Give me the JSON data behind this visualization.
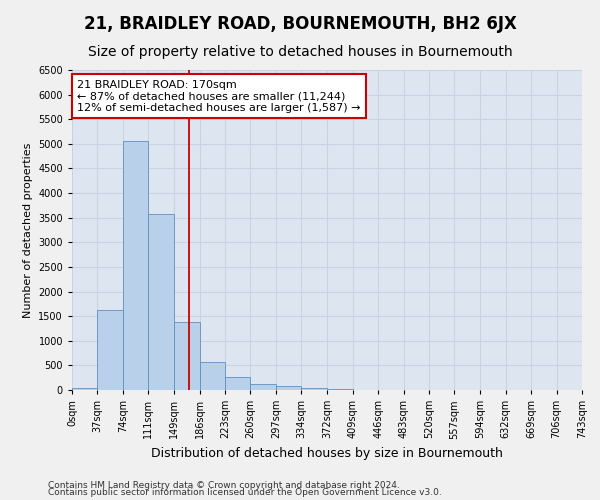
{
  "title": "21, BRAIDLEY ROAD, BOURNEMOUTH, BH2 6JX",
  "subtitle": "Size of property relative to detached houses in Bournemouth",
  "xlabel": "Distribution of detached houses by size in Bournemouth",
  "ylabel": "Number of detached properties",
  "footer_line1": "Contains HM Land Registry data © Crown copyright and database right 2024.",
  "footer_line2": "Contains public sector information licensed under the Open Government Licence v3.0.",
  "bar_left_edges": [
    0,
    37,
    74,
    111,
    149,
    186,
    223,
    260,
    297,
    334,
    372,
    409,
    446,
    483,
    520,
    557,
    594,
    632,
    669,
    706
  ],
  "bar_widths": [
    37,
    37,
    37,
    38,
    37,
    37,
    37,
    37,
    37,
    38,
    37,
    37,
    37,
    37,
    37,
    37,
    38,
    37,
    37,
    37
  ],
  "bar_heights": [
    50,
    1620,
    5050,
    3570,
    1380,
    570,
    260,
    120,
    80,
    50,
    20,
    10,
    5,
    3,
    2,
    1,
    0,
    0,
    0,
    0
  ],
  "bar_color": "#b8d0ea",
  "bar_edge_color": "#6090c0",
  "grid_color": "#c8d4e4",
  "bg_color": "#dde5f0",
  "fig_bg_color": "#f0f0f0",
  "vline_x": 170,
  "vline_color": "#cc0000",
  "annotation_line1": "21 BRAIDLEY ROAD: 170sqm",
  "annotation_line2": "← 87% of detached houses are smaller (11,244)",
  "annotation_line3": "12% of semi-detached houses are larger (1,587) →",
  "annotation_box_color": "#ffffff",
  "annotation_box_edge": "#cc0000",
  "ylim": [
    0,
    6500
  ],
  "yticks": [
    0,
    500,
    1000,
    1500,
    2000,
    2500,
    3000,
    3500,
    4000,
    4500,
    5000,
    5500,
    6000,
    6500
  ],
  "xtick_labels": [
    "0sqm",
    "37sqm",
    "74sqm",
    "111sqm",
    "149sqm",
    "186sqm",
    "223sqm",
    "260sqm",
    "297sqm",
    "334sqm",
    "372sqm",
    "409sqm",
    "446sqm",
    "483sqm",
    "520sqm",
    "557sqm",
    "594sqm",
    "632sqm",
    "669sqm",
    "706sqm",
    "743sqm"
  ],
  "title_fontsize": 12,
  "subtitle_fontsize": 10,
  "xlabel_fontsize": 9,
  "ylabel_fontsize": 8,
  "tick_fontsize": 7,
  "annotation_fontsize": 8,
  "footer_fontsize": 6.5
}
